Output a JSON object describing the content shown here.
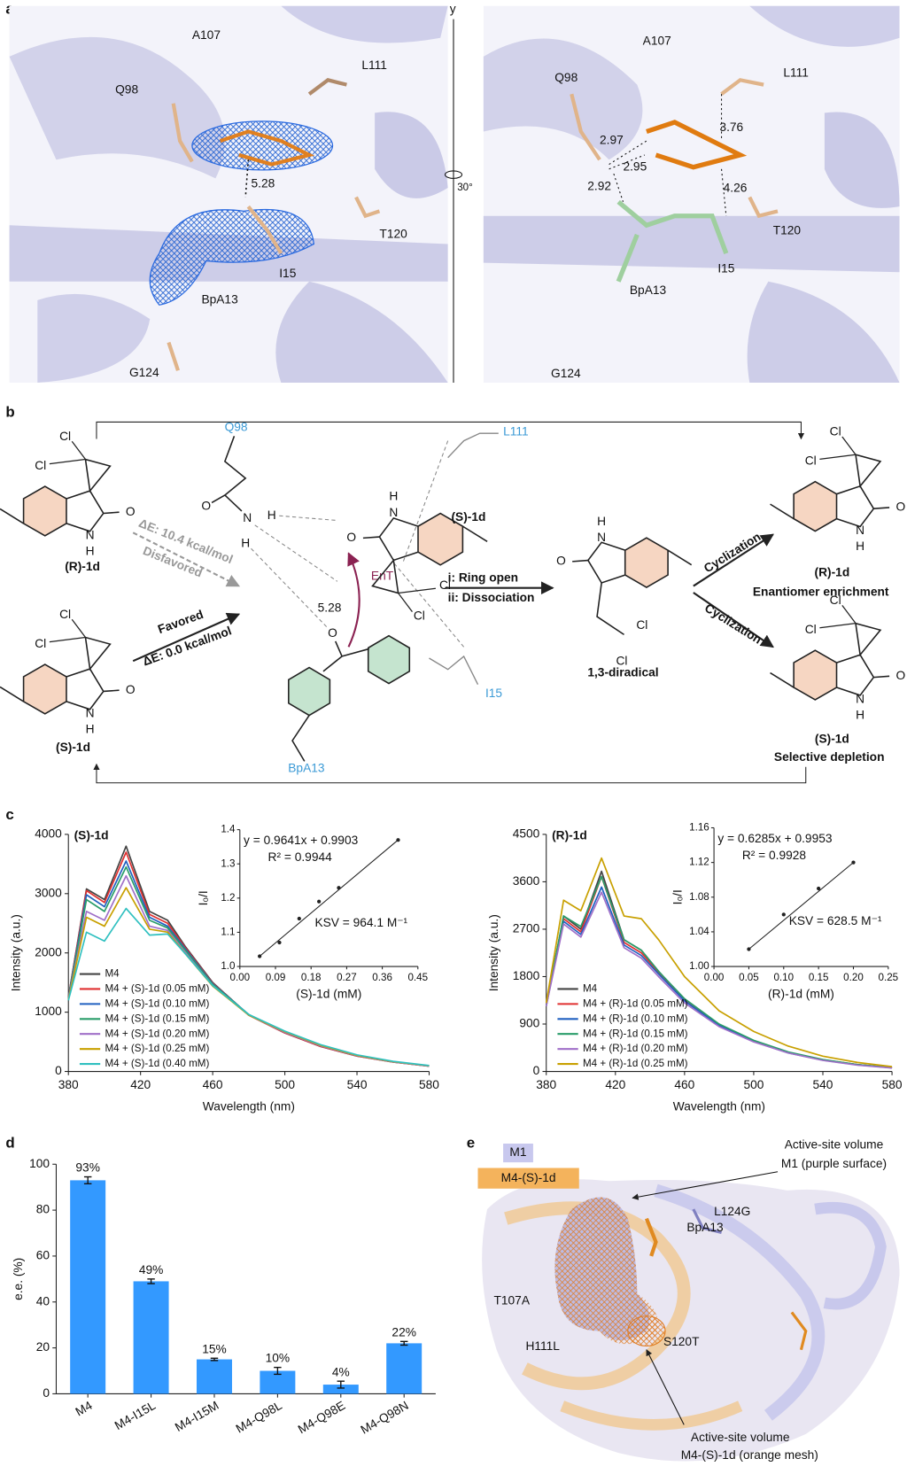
{
  "panel_labels": [
    "a",
    "b",
    "c",
    "d",
    "e"
  ],
  "panel_a": {
    "axis": "y",
    "angle": "30°",
    "left": [
      "A107",
      "L111",
      "Q98",
      "5.28",
      "T120",
      "I15",
      "BpA13",
      "G124"
    ],
    "right": [
      "A107",
      "L111",
      "Q98",
      "2.97",
      "2.95",
      "2.92",
      "3.76",
      "4.26",
      "T120",
      "I15",
      "BpA13",
      "G124"
    ]
  },
  "panel_b": {
    "residues": [
      "Q98",
      "L111",
      "I15",
      "BpA13"
    ],
    "molecules": [
      {
        "label": "(R)-1d",
        "atoms": [
          "Cl",
          "Cl",
          "O",
          "N",
          "H"
        ]
      },
      {
        "label": "(S)-1d",
        "atoms": [
          "Cl",
          "Cl",
          "O",
          "N",
          "H"
        ]
      },
      {
        "label": "(R)-1d",
        "note": "Enantiomer enrichment",
        "atoms": [
          "Cl",
          "Cl",
          "O",
          "N",
          "H"
        ]
      },
      {
        "label": "(S)-1d",
        "note": "Selective depletion",
        "atoms": [
          "Cl",
          "Cl",
          "O",
          "N",
          "H"
        ]
      },
      {
        "label": "1,3-diradical",
        "atoms": [
          "Cl",
          "Cl",
          "O",
          "N",
          "H"
        ]
      },
      {
        "label": "(S)-1d",
        "atoms": [
          "Cl",
          "Cl",
          "O",
          "N",
          "H"
        ]
      }
    ],
    "complex_atoms": [
      "O",
      "N",
      "H",
      "H",
      "O"
    ],
    "energy": {
      "disfavored_de": "ΔE: 10.4 kcal/mol",
      "disfavored": "Disfavored",
      "favored": "Favored",
      "favored_de": "ΔE: 0.0 kcal/mol"
    },
    "ent": "EnT",
    "distance": "5.28",
    "steps": [
      "i: Ring open",
      "ii: Dissociation"
    ],
    "cyclization": [
      "Cyclization",
      "Cyclization"
    ]
  },
  "chart_data": [
    {
      "type": "line",
      "title": "(S)-1d",
      "x": [
        380,
        390,
        400,
        412,
        425,
        435,
        445,
        460,
        480,
        500,
        520,
        540,
        560,
        580
      ],
      "series": [
        {
          "name": "M4",
          "color": "#444444",
          "values": [
            1250,
            3080,
            2900,
            3800,
            2700,
            2550,
            2100,
            1500,
            950,
            650,
            420,
            260,
            160,
            90
          ]
        },
        {
          "name": "M4 + (S)-1d (0.05 mM)",
          "color": "#e03030",
          "values": [
            1250,
            3050,
            2850,
            3700,
            2650,
            2500,
            2080,
            1490,
            950,
            650,
            420,
            260,
            160,
            90
          ]
        },
        {
          "name": "M4 + (S)-1d (0.10 mM)",
          "color": "#2060c0",
          "values": [
            1240,
            2980,
            2780,
            3550,
            2600,
            2450,
            2060,
            1480,
            960,
            660,
            430,
            265,
            165,
            95
          ]
        },
        {
          "name": "M4 + (S)-1d (0.15 mM)",
          "color": "#2a9d6a",
          "values": [
            1230,
            2900,
            2700,
            3450,
            2550,
            2420,
            2040,
            1470,
            960,
            665,
            435,
            270,
            165,
            95
          ]
        },
        {
          "name": "M4 + (S)-1d (0.20 mM)",
          "color": "#a070c8",
          "values": [
            1220,
            2700,
            2550,
            3300,
            2450,
            2380,
            2000,
            1450,
            950,
            660,
            430,
            265,
            160,
            90
          ]
        },
        {
          "name": "M4 + (S)-1d (0.25 mM)",
          "color": "#c8a000",
          "values": [
            1210,
            2600,
            2450,
            3100,
            2400,
            2350,
            1980,
            1440,
            950,
            670,
            440,
            270,
            165,
            95
          ]
        },
        {
          "name": "M4 + (S)-1d (0.40 mM)",
          "color": "#30c0c0",
          "values": [
            1200,
            2350,
            2200,
            2750,
            2300,
            2320,
            1980,
            1450,
            960,
            680,
            450,
            280,
            170,
            100
          ]
        }
      ],
      "xlim": [
        380,
        580
      ],
      "xticks": [
        380,
        420,
        460,
        500,
        540,
        580
      ],
      "ylim": [
        0,
        4000
      ],
      "yticks": [
        0,
        1000,
        2000,
        3000,
        4000
      ],
      "xlabel": "Wavelength (nm)",
      "ylabel": "Intensity (a.u.)",
      "legend": "lower left",
      "inset": {
        "type": "scatter",
        "color": "#222222",
        "x": [
          0.05,
          0.1,
          0.15,
          0.2,
          0.25,
          0.4
        ],
        "values": [
          1.03,
          1.07,
          1.14,
          1.19,
          1.23,
          1.37
        ],
        "xlim": [
          0,
          0.45
        ],
        "xticks": [
          {
            "value": 0,
            "label": "0.00"
          },
          0.09,
          0.18,
          0.27,
          0.36,
          0.45
        ],
        "ylim": [
          1.0,
          1.4
        ],
        "yticks": [
          {
            "value": 1,
            "label": "1.0"
          },
          1.1,
          1.2,
          1.3,
          1.4
        ],
        "xlabel": "(S)-1d (mM)",
        "ylabel": "I₀/I",
        "annotations": [
          "y = 0.9641x + 0.9903",
          "R² = 0.9944",
          "KSV = 964.1 M⁻¹"
        ]
      }
    },
    {
      "type": "line",
      "title": "(R)-1d",
      "x": [
        380,
        390,
        400,
        412,
        425,
        435,
        445,
        460,
        480,
        500,
        520,
        540,
        560,
        580
      ],
      "series": [
        {
          "name": "M4",
          "color": "#444444",
          "values": [
            1250,
            2950,
            2700,
            3800,
            2500,
            2300,
            1900,
            1350,
            880,
            580,
            360,
            220,
            130,
            70
          ]
        },
        {
          "name": "M4 + (R)-1d (0.05 mM)",
          "color": "#e03030",
          "values": [
            1250,
            2900,
            2650,
            3700,
            2450,
            2250,
            1880,
            1350,
            880,
            580,
            360,
            220,
            130,
            70
          ]
        },
        {
          "name": "M4 + (R)-1d (0.10 mM)",
          "color": "#2060c0",
          "values": [
            1250,
            2850,
            2600,
            3500,
            2400,
            2200,
            1850,
            1340,
            870,
            570,
            350,
            215,
            125,
            70
          ]
        },
        {
          "name": "M4 + (R)-1d (0.15 mM)",
          "color": "#2a9d6a",
          "values": [
            1250,
            2950,
            2750,
            3700,
            2500,
            2300,
            1900,
            1380,
            900,
            590,
            370,
            225,
            130,
            75
          ]
        },
        {
          "name": "M4 + (R)-1d (0.20 mM)",
          "color": "#a070c8",
          "values": [
            1240,
            2800,
            2550,
            3400,
            2350,
            2150,
            1800,
            1300,
            850,
            560,
            350,
            210,
            120,
            65
          ]
        },
        {
          "name": "M4 + (R)-1d (0.25 mM)",
          "color": "#c8a000",
          "values": [
            1300,
            3250,
            3050,
            4050,
            2950,
            2900,
            2500,
            1800,
            1150,
            760,
            480,
            290,
            170,
            90
          ]
        }
      ],
      "xlim": [
        380,
        580
      ],
      "xticks": [
        380,
        420,
        460,
        500,
        540,
        580
      ],
      "ylim": [
        0,
        4500
      ],
      "yticks": [
        0,
        900,
        1800,
        2700,
        3600,
        4500
      ],
      "xlabel": "Wavelength (nm)",
      "ylabel": "Intensity (a.u.)",
      "legend": "lower left",
      "inset": {
        "type": "scatter",
        "color": "#222222",
        "x": [
          0.05,
          0.1,
          0.15,
          0.2
        ],
        "values": [
          1.02,
          1.06,
          1.09,
          1.12
        ],
        "xlim": [
          0,
          0.25
        ],
        "xticks": [
          {
            "value": 0,
            "label": "0.00"
          },
          0.05,
          {
            "value": 0.1,
            "label": "0.10"
          },
          0.15,
          {
            "value": 0.2,
            "label": "0.20"
          },
          0.25
        ],
        "ylim": [
          1.0,
          1.16
        ],
        "yticks": [
          {
            "value": 1,
            "label": "1.00"
          },
          1.04,
          1.08,
          1.12,
          1.16
        ],
        "xlabel": "(R)-1d (mM)",
        "ylabel": "I₀/I",
        "annotations": [
          "y = 0.6285x + 0.9953",
          "R² = 0.9928",
          "KSV = 628.5 M⁻¹"
        ]
      }
    },
    {
      "type": "bar",
      "categories": [
        "M4",
        "M4-I15L",
        "M4-I15M",
        "M4-Q98L",
        "M4-Q98E",
        "M4-Q98N"
      ],
      "values": [
        93,
        49,
        15,
        10,
        4,
        22
      ],
      "value_labels": [
        "93%",
        "49%",
        "15%",
        "10%",
        "4%",
        "22%"
      ],
      "errors": [
        1.5,
        1,
        0.5,
        1.5,
        1.5,
        0.8
      ],
      "color": "#3399ff",
      "ylim": [
        0,
        100
      ],
      "yticks": [
        0,
        20,
        40,
        60,
        80,
        100
      ],
      "ylabel": "e.e. (%)"
    }
  ],
  "panel_e": {
    "legend": [
      "M1",
      "M4-(S)-1d"
    ],
    "labels": [
      "Active-site volume",
      "M1 (purple surface)",
      "BpA13",
      "L124G",
      "T107A",
      "H111L",
      "S120T",
      "Active-site volume",
      "M4-(S)-1d (orange mesh)"
    ]
  }
}
